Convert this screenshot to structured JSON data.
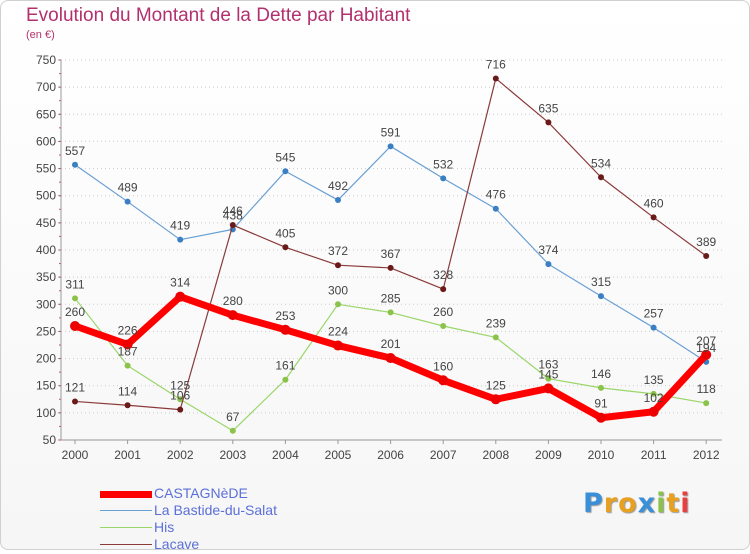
{
  "header": {
    "title": "Evolution du Montant de la Dette par Habitant",
    "subtitle": "(en €)"
  },
  "logo": {
    "letters": [
      "P",
      "r",
      "o",
      "x",
      "i",
      "t",
      "i"
    ],
    "colors": [
      "#3a8fd9",
      "#e8a020",
      "#e8a020",
      "#3a8fd9",
      "#8bc34a",
      "#e8a020",
      "#e84040"
    ]
  },
  "chart_data": {
    "type": "line",
    "title": "Evolution du Montant de la Dette par Habitant",
    "ylabel": "(en €)",
    "xlabel": "",
    "x": [
      "2000",
      "2001",
      "2002",
      "2003",
      "2004",
      "2005",
      "2006",
      "2007",
      "2008",
      "2009",
      "2010",
      "2011",
      "2012"
    ],
    "ylim": [
      50,
      750
    ],
    "yticks": [
      50,
      100,
      150,
      200,
      250,
      300,
      350,
      400,
      450,
      500,
      550,
      600,
      650,
      700,
      750
    ],
    "grid": "horizontal-dotted",
    "legend_position": "bottom-left",
    "series": [
      {
        "name": "La Bastide-du-Salat",
        "color": "#6a9fd4",
        "marker": "#3a7fc4",
        "width": 1.2,
        "values": [
          557,
          489,
          419,
          438,
          545,
          492,
          591,
          532,
          476,
          374,
          315,
          257,
          194
        ],
        "labels": [
          "557",
          "489",
          "419",
          "438",
          "545",
          "492",
          "591",
          "532",
          "476",
          "374",
          "315",
          "257",
          "194"
        ]
      },
      {
        "name": "His",
        "color": "#9ad66a",
        "marker": "#8bc34a",
        "width": 1.2,
        "values": [
          311,
          187,
          125,
          67,
          161,
          300,
          285,
          260,
          239,
          163,
          146,
          135,
          118
        ],
        "labels": [
          "311",
          "187",
          "125",
          "67",
          "161",
          "300",
          "285",
          "260",
          "239",
          "163",
          "146",
          "135",
          "118"
        ]
      },
      {
        "name": "Lacave",
        "color": "#8b3a3a",
        "marker": "#6b1a1a",
        "width": 1.2,
        "values": [
          121,
          114,
          106,
          446,
          405,
          372,
          367,
          328,
          716,
          635,
          534,
          460,
          389
        ],
        "labels": [
          "121",
          "114",
          "106",
          "446",
          "405",
          "372",
          "367",
          "328",
          "716",
          "635",
          "534",
          "460",
          "389"
        ]
      },
      {
        "name": "CASTAGNèDE",
        "color": "#ff0000",
        "marker": "#ee0000",
        "width": 7,
        "values": [
          260,
          226,
          314,
          280,
          253,
          224,
          201,
          160,
          125,
          145,
          91,
          102,
          207
        ],
        "labels": [
          "260",
          "226",
          "314",
          "280",
          "253",
          "224",
          "201",
          "160",
          "125",
          "145",
          "91",
          "102",
          "207"
        ]
      }
    ],
    "legend": [
      {
        "name": "CASTAGNèDE",
        "color": "#ff0000",
        "width": 7
      },
      {
        "name": "La Bastide-du-Salat",
        "color": "#6a9fd4",
        "width": 1.5
      },
      {
        "name": "His",
        "color": "#9ad66a",
        "width": 1.5
      },
      {
        "name": "Lacave",
        "color": "#8b3a3a",
        "width": 1.5
      }
    ]
  }
}
